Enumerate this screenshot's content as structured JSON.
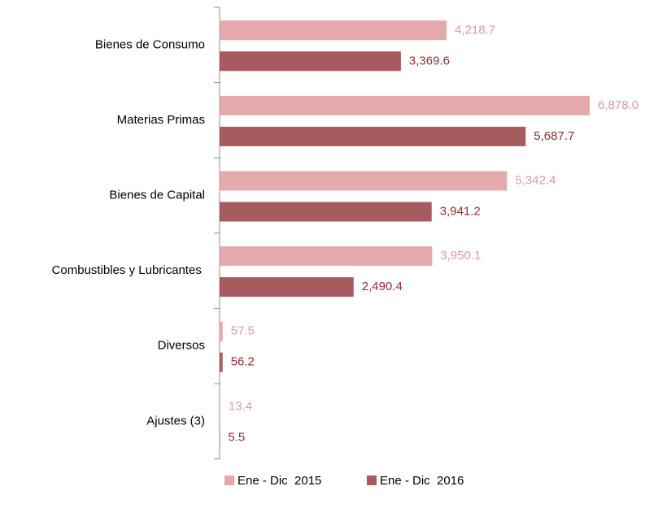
{
  "chart_data": {
    "type": "hbar",
    "categories": [
      "Bienes de Consumo",
      "Materias Primas",
      "Bienes de Capital",
      "Combustibles y Lubricantes ",
      "Diversos",
      "Ajustes (3)"
    ],
    "series": [
      {
        "name": "Ene - Dic  2015",
        "color": "#e6a9ab",
        "label_color": "#dc9a9c",
        "values": [
          4218.7,
          6878.0,
          5342.4,
          3950.1,
          57.5,
          13.4
        ],
        "value_labels": [
          "4,218.7",
          "6,878.0",
          "5,342.4",
          "3,950.1",
          "57.5",
          "13.4"
        ]
      },
      {
        "name": "Ene - Dic  2016",
        "color": "#a85b5e",
        "label_color": "#8c2d31",
        "values": [
          3369.6,
          5687.7,
          3941.2,
          2490.4,
          56.2,
          5.5
        ],
        "value_labels": [
          "3,369.6",
          "5,687.7",
          "3,941.2",
          "2,490.4",
          "56.2",
          "5.5"
        ]
      }
    ]
  }
}
